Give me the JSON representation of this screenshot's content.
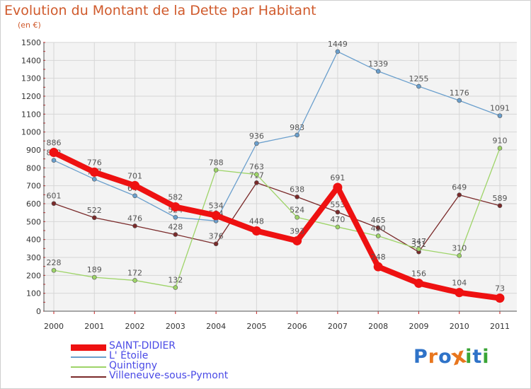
{
  "header": {
    "title": "Evolution du Montant de la Dette par Habitant",
    "subtitle": "(en €)"
  },
  "branding": {
    "logo_text": "Proxiti",
    "letter_colors": [
      "#2f73c8",
      "#e8761e",
      "#2f73c8",
      "#e8761e",
      "#3aa536",
      "#2f73c8",
      "#3aa536"
    ]
  },
  "chart_data": {
    "type": "line",
    "title": "Evolution du Montant de la Dette par Habitant",
    "subtitle": "(en €)",
    "ylim": [
      0,
      1500
    ],
    "yticks": [
      "0",
      "100",
      "200",
      "300",
      "400",
      "500",
      "600",
      "700",
      "800",
      "900",
      "1000",
      "1100",
      "1200",
      "1300",
      "1400",
      "1500"
    ],
    "ytick_values": [
      0,
      100,
      200,
      300,
      400,
      500,
      600,
      700,
      800,
      900,
      1000,
      1100,
      1200,
      1300,
      1400,
      1500
    ],
    "x": [
      "2000",
      "2001",
      "2002",
      "2003",
      "2004",
      "2005",
      "2006",
      "2007",
      "2008",
      "2009",
      "2010",
      "2011"
    ],
    "grid": true,
    "legend_position": "bottom-left",
    "series": [
      {
        "name": "Villeneuve-sous-Pymont",
        "color": "#7a2a2a",
        "values": [
          601,
          522,
          476,
          428,
          376,
          717,
          638,
          553,
          465,
          331,
          649,
          589
        ],
        "labels": [
          "601",
          "522",
          "476",
          "428",
          "376",
          "717",
          "638",
          "553",
          "465",
          "331",
          "649",
          "589"
        ]
      },
      {
        "name": "Quintigny",
        "color": "#9ed468",
        "values": [
          228,
          189,
          172,
          132,
          788,
          763,
          524,
          470,
          420,
          347,
          310,
          910
        ],
        "labels": [
          "228",
          "189",
          "172",
          "132",
          "788",
          "763",
          "524",
          "470",
          "420",
          "347",
          "310",
          "910"
        ]
      },
      {
        "name": "L' Étoile",
        "color": "#6a9fcd",
        "values": [
          842,
          737,
          644,
          524,
          504,
          936,
          983,
          1449,
          1339,
          1255,
          1176,
          1091
        ],
        "labels": [
          "842",
          "737",
          "644",
          "524",
          "504",
          "936",
          "983",
          "1449",
          "1339",
          "1255",
          "1176",
          "1091"
        ]
      },
      {
        "name": "SAINT-DIDIER",
        "color": "#ee1111",
        "values": [
          886,
          776,
          701,
          582,
          534,
          448,
          393,
          691,
          248,
          156,
          104,
          73
        ],
        "labels": [
          "886",
          "776",
          "701",
          "582",
          "534",
          "448",
          "393",
          "691",
          "248",
          "156",
          "104",
          "73"
        ]
      }
    ],
    "legend": [
      "SAINT-DIDIER",
      "L' Étoile",
      "Quintigny",
      "Villeneuve-sous-Pymont"
    ]
  }
}
